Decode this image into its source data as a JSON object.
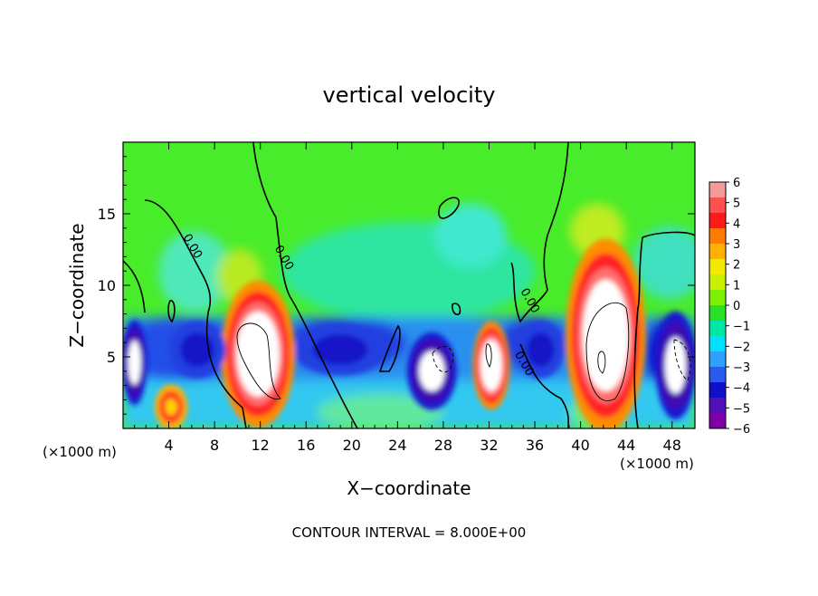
{
  "chart_data": {
    "type": "heatmap",
    "title": "vertical velocity",
    "xlabel": "X−coordinate",
    "ylabel": "Z−coordinate",
    "x_unit_left": "(×1000 m)",
    "x_unit_right": "(×1000 m)",
    "xlim": [
      0,
      50
    ],
    "ylim": [
      0,
      20
    ],
    "x_ticks": [
      4,
      8,
      12,
      16,
      20,
      24,
      28,
      32,
      36,
      40,
      44,
      48
    ],
    "y_ticks": [
      5,
      10,
      15
    ],
    "contour_interval_text": "CONTOUR INTERVAL = 8.000E+00",
    "contour_labels": [
      {
        "text": "0.00",
        "x": 5.8,
        "z": 12.6
      },
      {
        "text": "0.00",
        "x": 13.8,
        "z": 11.8
      },
      {
        "text": "0.00",
        "x": 35.3,
        "z": 8.8
      },
      {
        "text": "0.00",
        "x": 34.8,
        "z": 4.4
      }
    ],
    "colorbar": {
      "labels": [
        "6",
        "5",
        "4",
        "3",
        "2",
        "1",
        "0",
        "−1",
        "−2",
        "−3",
        "−4",
        "−5",
        "−6"
      ],
      "min": -6,
      "max": 6,
      "colors": [
        "#f49a9a",
        "#ff5050",
        "#ff1a1a",
        "#ff7a00",
        "#ffb000",
        "#f2e800",
        "#c8f000",
        "#7cf000",
        "#28e028",
        "#00e8a8",
        "#00e0ff",
        "#30a0ff",
        "#2a5af0",
        "#1010c8",
        "#5010b8",
        "#8000a8"
      ]
    },
    "features": [
      {
        "kind": "updraft-core",
        "cx": 11.8,
        "cz": 5.2,
        "rx": 2.4,
        "rz": 3.8,
        "w": 7
      },
      {
        "kind": "updraft-core",
        "cx": 42.2,
        "cz": 6.5,
        "rx": 2.6,
        "rz": 5.0,
        "w": 7
      },
      {
        "kind": "updraft-core",
        "cx": 32.2,
        "cz": 4.4,
        "rx": 1.2,
        "rz": 2.3,
        "w": 7
      },
      {
        "kind": "updraft-core",
        "cx": 4.2,
        "cz": 1.5,
        "rx": 1.2,
        "rz": 1.3,
        "w": 4
      },
      {
        "kind": "downdraft-core",
        "cx": 27.0,
        "cz": 4.0,
        "rx": 1.6,
        "rz": 2.0,
        "w": -7
      },
      {
        "kind": "downdraft-core",
        "cx": 48.3,
        "cz": 4.4,
        "rx": 1.3,
        "rz": 2.8,
        "w": -7
      },
      {
        "kind": "downdraft-core",
        "cx": 1.0,
        "cz": 4.6,
        "rx": 0.8,
        "rz": 2.2,
        "w": -7
      },
      {
        "kind": "downdraft",
        "cx": 19.0,
        "cz": 5.5,
        "rx": 4.0,
        "rz": 1.8,
        "w": -4
      },
      {
        "kind": "downdraft",
        "cx": 6.5,
        "cz": 5.5,
        "rx": 2.5,
        "rz": 2.0,
        "w": -4
      },
      {
        "kind": "downdraft",
        "cx": 36.5,
        "cz": 5.5,
        "rx": 2.0,
        "rz": 2.0,
        "w": -4
      }
    ]
  }
}
